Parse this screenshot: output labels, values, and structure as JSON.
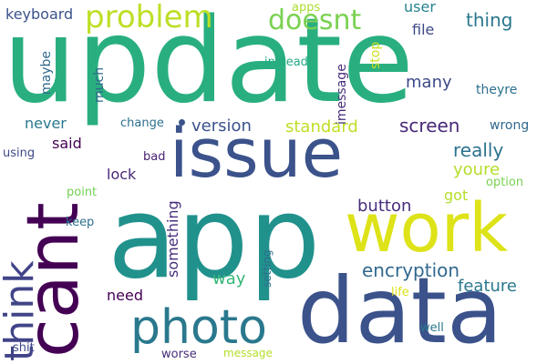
{
  "words": [
    {
      "text": "update",
      "color": "#29af7f"
    },
    {
      "text": "app",
      "color": "#21918c"
    },
    {
      "text": "data",
      "color": "#3b528b"
    },
    {
      "text": "issue",
      "color": "#3b528b"
    },
    {
      "text": "work",
      "color": "#dde318"
    },
    {
      "text": "cant",
      "color": "#440154"
    },
    {
      "text": "photo",
      "color": "#2a788e"
    },
    {
      "text": "think",
      "color": "#414487"
    },
    {
      "text": "problem",
      "color": "#bddf26"
    },
    {
      "text": "doesnt",
      "color": "#7ad151"
    },
    {
      "text": "encryption",
      "color": "#31688e"
    },
    {
      "text": "screen",
      "color": "#482878"
    },
    {
      "text": "really",
      "color": "#2c728e"
    },
    {
      "text": "thing",
      "color": "#2a788e"
    },
    {
      "text": "version",
      "color": "#3b528b"
    },
    {
      "text": "standard",
      "color": "#bddf26"
    },
    {
      "text": "feature",
      "color": "#2a788e"
    },
    {
      "text": "youre",
      "color": "#b5de2b"
    },
    {
      "text": "button",
      "color": "#472d7b"
    },
    {
      "text": "something",
      "color": "#472d7b"
    },
    {
      "text": "way",
      "color": "#35b779"
    },
    {
      "text": "many",
      "color": "#3e4a89"
    },
    {
      "text": "keyboard",
      "color": "#3b528b"
    },
    {
      "text": "never",
      "color": "#2a788e"
    },
    {
      "text": "said",
      "color": "#440154"
    },
    {
      "text": "lock",
      "color": "#482878"
    },
    {
      "text": "need",
      "color": "#440154"
    },
    {
      "text": "maybe",
      "color": "#31688e"
    },
    {
      "text": "much",
      "color": "#31688e"
    },
    {
      "text": "user",
      "color": "#26828e"
    },
    {
      "text": "file",
      "color": "#3e4a89"
    },
    {
      "text": "stop",
      "color": "#c8e020"
    },
    {
      "text": "got",
      "color": "#b5de2b"
    },
    {
      "text": "wrong",
      "color": "#31688e"
    },
    {
      "text": "imessage",
      "color": "#472d7b"
    },
    {
      "text": "instead",
      "color": "#22a884"
    },
    {
      "text": "apps",
      "color": "#addc30"
    },
    {
      "text": "theyre",
      "color": "#2d708e"
    },
    {
      "text": "change",
      "color": "#2d708e"
    },
    {
      "text": "using",
      "color": "#3e4a89"
    },
    {
      "text": "bad",
      "color": "#481f70"
    },
    {
      "text": "point",
      "color": "#75d054"
    },
    {
      "text": "option",
      "color": "#7ad151"
    },
    {
      "text": "keep",
      "color": "#2d708e"
    },
    {
      "text": "setting",
      "color": "#2d708e"
    },
    {
      "text": "life",
      "color": "#dde318"
    },
    {
      "text": "well",
      "color": "#2a788e"
    },
    {
      "text": "shit",
      "color": "#3e4a89"
    },
    {
      "text": "worse",
      "color": "#472d7b"
    },
    {
      "text": "message",
      "color": "#b5de2b"
    }
  ]
}
